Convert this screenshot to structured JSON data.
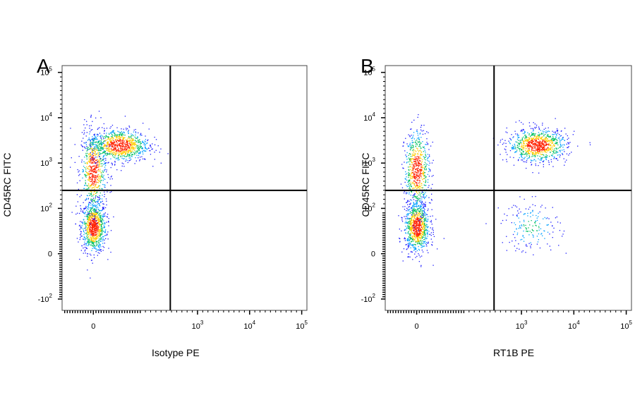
{
  "chart_data": [
    {
      "type": "scatter",
      "panel_label": "A",
      "xlabel": "Isotype PE",
      "ylabel": "CD45RC FITC",
      "x_scale": "biexponential",
      "y_scale": "biexponential",
      "xticks": [
        {
          "base": "0",
          "exp": ""
        },
        {
          "base": "10",
          "exp": "3"
        },
        {
          "base": "10",
          "exp": "4"
        },
        {
          "base": "10",
          "exp": "5"
        }
      ],
      "yticks": [
        {
          "base": "-10",
          "exp": "2"
        },
        {
          "base": "0",
          "exp": ""
        },
        {
          "base": "10",
          "exp": "2"
        },
        {
          "base": "10",
          "exp": "3"
        },
        {
          "base": "10",
          "exp": "4"
        },
        {
          "base": "10",
          "exp": "5"
        }
      ],
      "gate": {
        "x": 300,
        "y": 250
      },
      "populations": [
        {
          "description": "CD45RC low",
          "x_median": 0,
          "y_median": 60,
          "density": "high"
        },
        {
          "description": "CD45RC intermediate",
          "x_median": 0,
          "y_median": 700,
          "density": "medium"
        },
        {
          "description": "CD45RC high",
          "x_median": 50,
          "y_median": 2500,
          "density": "high"
        }
      ]
    },
    {
      "type": "scatter",
      "panel_label": "B",
      "xlabel": "RT1B PE",
      "ylabel": "CD45RC FITC",
      "x_scale": "biexponential",
      "y_scale": "biexponential",
      "xticks": [
        {
          "base": "0",
          "exp": ""
        },
        {
          "base": "10",
          "exp": "3"
        },
        {
          "base": "10",
          "exp": "4"
        },
        {
          "base": "10",
          "exp": "5"
        }
      ],
      "yticks": [
        {
          "base": "-10",
          "exp": "2"
        },
        {
          "base": "0",
          "exp": ""
        },
        {
          "base": "10",
          "exp": "2"
        },
        {
          "base": "10",
          "exp": "3"
        },
        {
          "base": "10",
          "exp": "4"
        },
        {
          "base": "10",
          "exp": "5"
        }
      ],
      "gate": {
        "x": 300,
        "y": 250
      },
      "populations": [
        {
          "description": "RT1B- CD45RC low",
          "x_median": 0,
          "y_median": 60,
          "density": "high"
        },
        {
          "description": "RT1B- CD45RC intermediate",
          "x_median": 0,
          "y_median": 700,
          "density": "medium"
        },
        {
          "description": "RT1B+ CD45RC high",
          "x_median": 2000,
          "y_median": 2500,
          "density": "high"
        },
        {
          "description": "RT1B+ CD45RC low",
          "x_median": 1500,
          "y_median": 60,
          "density": "low"
        }
      ]
    }
  ],
  "colors": {
    "density_low": "#1a1aff",
    "density_mid": "#00c060",
    "density_high": "#ff2000",
    "axis": "#000000",
    "background": "#ffffff"
  }
}
